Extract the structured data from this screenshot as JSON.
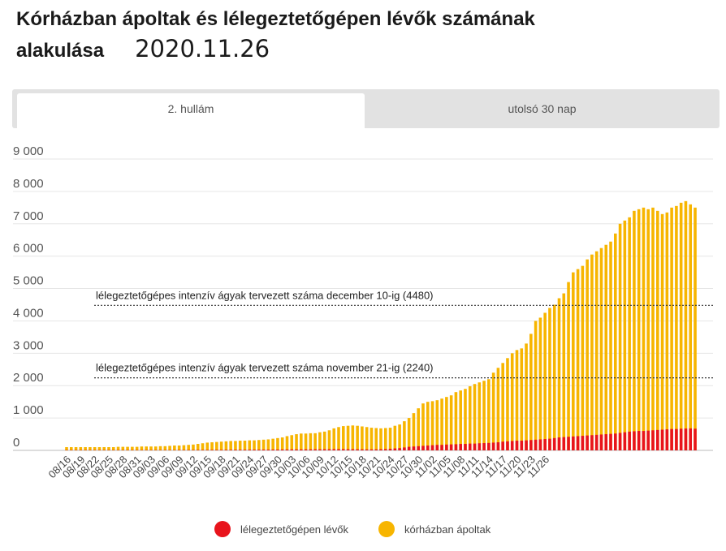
{
  "header": {
    "title": "Kórházban ápoltak és lélegeztetőgépen lévők számának alakulása",
    "date": "2020.11.26"
  },
  "tabs": [
    {
      "label": "2. hullám",
      "active": true
    },
    {
      "label": "utolsó 30 nap",
      "active": false
    }
  ],
  "legend": {
    "items": [
      {
        "label": "lélegeztetőgépen lévők",
        "color": "#e8141c"
      },
      {
        "label": "kórházban ápoltak",
        "color": "#f7b500"
      }
    ]
  },
  "chart_data": {
    "type": "bar",
    "stacked": true,
    "ylim": [
      0,
      9000
    ],
    "y_ticks": [
      "0",
      "1 000",
      "2 000",
      "3 000",
      "4 000",
      "5 000",
      "6 000",
      "7 000",
      "8 000",
      "9 000"
    ],
    "x_tick_labels": [
      "08/16",
      "08/19",
      "08/22",
      "08/25",
      "08/28",
      "08/31",
      "09/03",
      "09/06",
      "09/09",
      "09/12",
      "09/15",
      "09/18",
      "09/21",
      "09/24",
      "09/27",
      "09/30",
      "10/03",
      "10/06",
      "10/09",
      "10/12",
      "10/15",
      "10/18",
      "10/21",
      "10/24",
      "10/27",
      "10/30",
      "11/02",
      "11/05",
      "11/08",
      "11/11",
      "11/14",
      "11/17",
      "11/20",
      "11/23",
      "11/26"
    ],
    "x_start": "08/16",
    "annotations": [
      {
        "value": 4480,
        "text": "lélegeztetőgépes intenzív ágyak tervezett száma december 10-ig (4480)"
      },
      {
        "value": 2240,
        "text": "lélegeztetőgépes intenzív ágyak tervezett száma november 21-ig (2240)"
      }
    ],
    "series": [
      {
        "name": "lélegeztetőgépen lévők",
        "color": "#e8141c",
        "values": [
          10,
          10,
          10,
          10,
          10,
          10,
          10,
          10,
          10,
          10,
          10,
          10,
          10,
          10,
          10,
          10,
          10,
          10,
          10,
          10,
          10,
          10,
          10,
          10,
          12,
          12,
          12,
          12,
          14,
          14,
          14,
          16,
          16,
          16,
          18,
          18,
          20,
          20,
          20,
          22,
          22,
          22,
          24,
          24,
          26,
          26,
          28,
          28,
          30,
          30,
          30,
          32,
          32,
          34,
          34,
          35,
          36,
          38,
          38,
          38,
          36,
          36,
          34,
          32,
          30,
          30,
          32,
          36,
          40,
          50,
          60,
          70,
          90,
          110,
          120,
          130,
          140,
          150,
          160,
          170,
          170,
          180,
          185,
          190,
          200,
          200,
          210,
          210,
          220,
          225,
          230,
          240,
          250,
          270,
          280,
          290,
          300,
          300,
          310,
          320,
          330,
          340,
          350,
          360,
          380,
          400,
          410,
          420,
          430,
          440,
          450,
          460,
          470,
          480,
          490,
          500,
          510,
          520,
          540,
          560,
          580,
          590,
          600,
          600,
          610,
          620,
          630,
          640,
          650,
          660,
          660,
          670,
          675,
          680,
          670
        ]
      },
      {
        "name": "kórházban ápoltak",
        "color": "#f7b500",
        "values": [
          100,
          100,
          100,
          100,
          100,
          100,
          100,
          100,
          100,
          100,
          100,
          110,
          110,
          110,
          110,
          110,
          120,
          120,
          120,
          120,
          130,
          130,
          140,
          150,
          150,
          160,
          170,
          180,
          200,
          220,
          240,
          250,
          260,
          270,
          280,
          290,
          290,
          300,
          300,
          310,
          310,
          320,
          330,
          340,
          360,
          380,
          400,
          440,
          470,
          500,
          520,
          520,
          530,
          530,
          560,
          580,
          620,
          680,
          720,
          750,
          760,
          770,
          760,
          740,
          720,
          700,
          690,
          680,
          690,
          700,
          760,
          800,
          900,
          1000,
          1150,
          1300,
          1450,
          1500,
          1520,
          1550,
          1600,
          1650,
          1700,
          1800,
          1850,
          1900,
          1980,
          2050,
          2100,
          2150,
          2200,
          2400,
          2550,
          2700,
          2850,
          3000,
          3100,
          3150,
          3300,
          3600,
          4000,
          4100,
          4250,
          4400,
          4500,
          4700,
          4850,
          5200,
          5500,
          5600,
          5700,
          5900,
          6050,
          6150,
          6250,
          6350,
          6450,
          6700,
          7000,
          7100,
          7200,
          7400,
          7450,
          7500,
          7450,
          7500,
          7400,
          7300,
          7350,
          7500,
          7550,
          7650,
          7700,
          7600,
          7500
        ]
      }
    ]
  }
}
